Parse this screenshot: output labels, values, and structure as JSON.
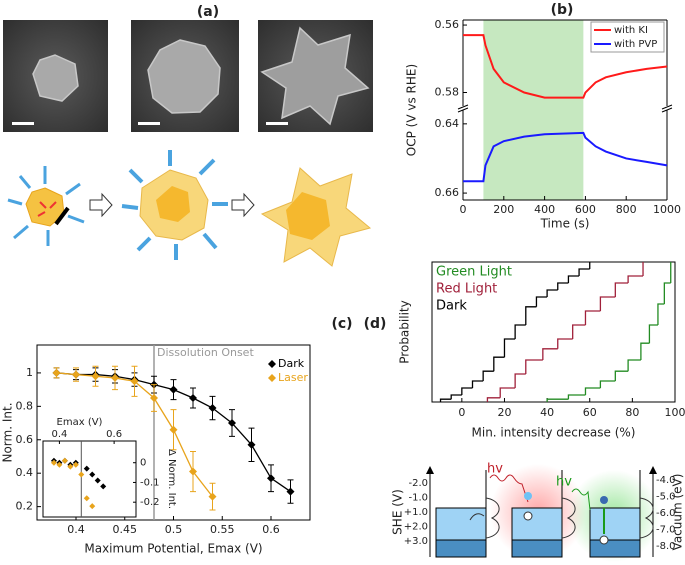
{
  "panel_labels": [
    "(a)",
    "(b)",
    "(c)",
    "(d)"
  ],
  "chart_data": [
    {
      "type": "line",
      "x_label": "Time (s)",
      "y_label": "OCP (V vs RHE)",
      "x": [
        0,
        100,
        110,
        150,
        200,
        300,
        400,
        590,
        600,
        650,
        700,
        800,
        900,
        1000
      ],
      "series": [
        {
          "name": "with KI",
          "color": "#ff1a1a",
          "segment": 0,
          "values": [
            0.563,
            0.563,
            0.566,
            0.573,
            0.577,
            0.58,
            0.5815,
            0.5815,
            0.58,
            0.577,
            0.5755,
            0.574,
            0.573,
            0.5723
          ]
        },
        {
          "name": "with PVP",
          "color": "#1a1aff",
          "segment": 1,
          "values": [
            0.6566,
            0.6566,
            0.652,
            0.6465,
            0.645,
            0.6437,
            0.643,
            0.6426,
            0.644,
            0.6465,
            0.648,
            0.65,
            0.651,
            0.652
          ]
        }
      ],
      "xlim": [
        0,
        1000
      ],
      "xticks": [
        0,
        200,
        400,
        600,
        800,
        1000
      ],
      "ylim_segments": [
        [
          0.5585,
          0.584
        ],
        [
          0.636,
          0.662
        ]
      ],
      "yticks": [
        0.56,
        0.58,
        0.64,
        0.66
      ],
      "y_inverted": true,
      "shade_x": [
        100,
        590
      ],
      "shade_color": "#c6e8c0",
      "legend": "upper right"
    },
    {
      "type": "errorbar",
      "x_label": "Maximum Potential, Emax (V)",
      "y_label": "Norm. Int.",
      "annotation": "Dissolution Onset",
      "annotation_x": 0.48,
      "annotation_color": "#999999",
      "series": [
        {
          "name": "Dark",
          "color": "#000000",
          "x": [
            0.38,
            0.4,
            0.42,
            0.44,
            0.46,
            0.48,
            0.5,
            0.52,
            0.54,
            0.56,
            0.58,
            0.6,
            0.62
          ],
          "values": [
            1.0,
            0.99,
            0.99,
            0.98,
            0.96,
            0.93,
            0.9,
            0.85,
            0.79,
            0.7,
            0.57,
            0.37,
            0.29
          ],
          "errors": [
            0.03,
            0.03,
            0.04,
            0.04,
            0.04,
            0.05,
            0.06,
            0.06,
            0.07,
            0.08,
            0.1,
            0.08,
            0.07
          ]
        },
        {
          "name": "Laser",
          "color": "#e8a41c",
          "x": [
            0.38,
            0.4,
            0.42,
            0.44,
            0.46,
            0.48,
            0.5,
            0.52,
            0.54
          ],
          "values": [
            1.0,
            0.99,
            0.98,
            0.97,
            0.95,
            0.85,
            0.66,
            0.41,
            0.26
          ],
          "errors": [
            0.03,
            0.04,
            0.06,
            0.07,
            0.09,
            0.08,
            0.12,
            0.12,
            0.08
          ]
        }
      ],
      "xlim": [
        0.36,
        0.64
      ],
      "xticks": [
        0.4,
        0.45,
        0.5,
        0.55,
        0.6
      ],
      "ylim": [
        0.12,
        1.167
      ],
      "yticks": [
        0.2,
        0.4,
        0.6,
        0.8,
        1
      ],
      "legend": "upper right",
      "inset": {
        "type": "scatter",
        "x_label": "Emax (V)",
        "y_label": "Δ Norm. Int.",
        "xlim": [
          0.34,
          0.68
        ],
        "xticks": [
          0.4,
          0.6
        ],
        "ylim": [
          -0.275,
          0.11
        ],
        "yticks": [
          0,
          -0.1,
          -0.2
        ],
        "series": [
          {
            "color": "#000000",
            "x": [
              0.38,
              0.4,
              0.42,
              0.44,
              0.46,
              0.5,
              0.52,
              0.54,
              0.56
            ],
            "values": [
              0.01,
              0.0,
              0.01,
              -0.01,
              0.0,
              -0.03,
              -0.06,
              -0.09,
              -0.12
            ]
          },
          {
            "color": "#e8a41c",
            "x": [
              0.38,
              0.4,
              0.42,
              0.44,
              0.46,
              0.48,
              0.5,
              0.52
            ],
            "values": [
              0.0,
              -0.01,
              0.01,
              -0.02,
              -0.01,
              -0.06,
              -0.18,
              -0.22
            ]
          }
        ]
      }
    },
    {
      "type": "step",
      "x_label": "Min. intensity decrease (%)",
      "y_label": "Probability",
      "xlim": [
        -14,
        100
      ],
      "xticks": [
        0,
        20,
        40,
        60,
        80,
        100
      ],
      "ylim": [
        0,
        1
      ],
      "legend": "upper left",
      "series": [
        {
          "name": "Green Light",
          "color": "#228b22",
          "x": [
            40,
            50,
            58,
            65,
            72,
            78,
            84,
            88,
            92,
            95,
            98
          ],
          "values": [
            0.02,
            0.05,
            0.1,
            0.15,
            0.22,
            0.3,
            0.42,
            0.55,
            0.7,
            0.85,
            1
          ]
        },
        {
          "name": "Red Light",
          "color": "#a0203a",
          "x": [
            12,
            18,
            25,
            30,
            38,
            45,
            52,
            58,
            65,
            72,
            78,
            85
          ],
          "values": [
            0.03,
            0.1,
            0.2,
            0.3,
            0.38,
            0.45,
            0.55,
            0.65,
            0.75,
            0.85,
            0.9,
            1
          ]
        },
        {
          "name": "Dark",
          "color": "#000000",
          "x": [
            -10,
            -5,
            0,
            5,
            10,
            15,
            20,
            25,
            30,
            35,
            40,
            45,
            50,
            55,
            60
          ],
          "values": [
            0.02,
            0.05,
            0.1,
            0.15,
            0.22,
            0.32,
            0.45,
            0.55,
            0.68,
            0.75,
            0.8,
            0.85,
            0.9,
            0.95,
            1
          ]
        }
      ]
    }
  ],
  "energy_diagram": {
    "left_axis_label": "SHE (V)",
    "left_ticks": [
      "-2.0",
      "-1.0",
      "+1.0",
      "+2.0",
      "+3.0"
    ],
    "right_axis_label": "Vacuum (eV)",
    "right_ticks": [
      "-4.0",
      "-5.0",
      "-6.0",
      "-7.0",
      "-8.0"
    ],
    "photon_labels": [
      "hv",
      "hv"
    ]
  }
}
